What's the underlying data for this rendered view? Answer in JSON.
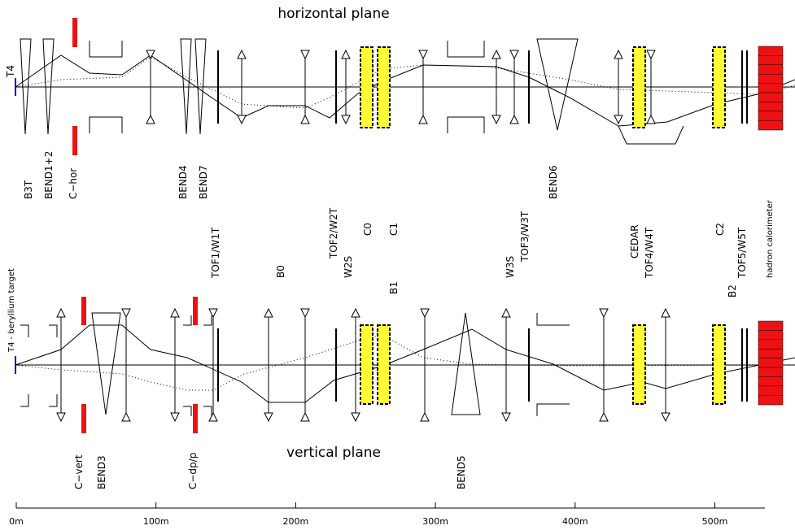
{
  "titles": {
    "horizontal": "horizontal plane",
    "vertical": "vertical plane"
  },
  "labels": [
    "T4",
    "B3T",
    "BEND1+2",
    "C−hor",
    "BEND4",
    "BEND7",
    "BEND6",
    "TOF1/W1T",
    "B0",
    "TOF2/W2T",
    "W2S",
    "C0",
    "C1",
    "B1",
    "W3S",
    "TOF3/W3T",
    "CEDAR",
    "TOF4/W4T",
    "C2",
    "B2",
    "TOF5/W5T",
    "hadron calorimeter",
    "T4 - beryllium target",
    "C−vert",
    "BEND3",
    "C−dp/p",
    "BEND5"
  ],
  "scale": [
    "0m",
    "100m",
    "200m",
    "300m",
    "400m",
    "500m"
  ]
}
